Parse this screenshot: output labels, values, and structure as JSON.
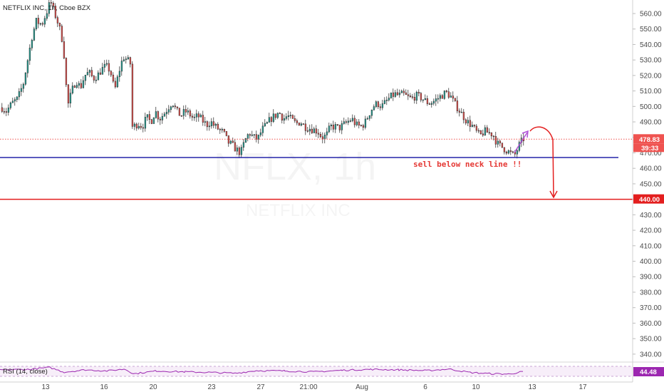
{
  "header": {
    "symbol_label": "NETFLIX INC, 1h, Cboe BZX"
  },
  "watermark": {
    "ticker": "NFLX, 1h",
    "company": "NETFLIX INC"
  },
  "annotation": {
    "text": "sell below neck line !!"
  },
  "price_labels": {
    "last": "478.83",
    "countdown": "39:33",
    "target": "440.00"
  },
  "rsi": {
    "label": "RSI (14, close)",
    "value": "44.48"
  },
  "colors": {
    "up": "#26a69a",
    "down": "#ef5350",
    "candle": "#3b3b3b",
    "neckline": "#2424a8",
    "target": "#e31e1e",
    "rsi": "#9c27b0",
    "arrow_purple": "#b052d6"
  },
  "chart_data": {
    "type": "candlestick",
    "title": "NETFLIX INC, 1h, Cboe BZX",
    "ylim": [
      335,
      572
    ],
    "y_ticks": [
      340,
      350,
      360,
      370,
      380,
      390,
      400,
      410,
      420,
      430,
      440,
      450,
      460,
      470,
      480,
      490,
      500,
      510,
      520,
      530,
      540,
      550,
      560
    ],
    "x_ticks": [
      "13",
      "16",
      "20",
      "23",
      "27",
      "21:00",
      "Aug",
      "6",
      "10",
      "13",
      "17"
    ],
    "neckline": 467,
    "target_level": 440,
    "last_price_line": 478.83,
    "price_path": [
      [
        0,
        500
      ],
      [
        8,
        497
      ],
      [
        16,
        502
      ],
      [
        24,
        505
      ],
      [
        32,
        515
      ],
      [
        38,
        530
      ],
      [
        44,
        545
      ],
      [
        50,
        555
      ],
      [
        58,
        553
      ],
      [
        64,
        560
      ],
      [
        70,
        568
      ],
      [
        76,
        560
      ],
      [
        82,
        552
      ],
      [
        88,
        540
      ],
      [
        94,
        500
      ],
      [
        100,
        510
      ],
      [
        106,
        517
      ],
      [
        112,
        512
      ],
      [
        118,
        520
      ],
      [
        124,
        522
      ],
      [
        130,
        518
      ],
      [
        136,
        520
      ],
      [
        142,
        524
      ],
      [
        148,
        526
      ],
      [
        154,
        523
      ],
      [
        160,
        510
      ],
      [
        166,
        522
      ],
      [
        172,
        532
      ],
      [
        178,
        530
      ],
      [
        183,
        527
      ],
      [
        187,
        487
      ],
      [
        193,
        489
      ],
      [
        199,
        487
      ],
      [
        205,
        493
      ],
      [
        211,
        490
      ],
      [
        217,
        497
      ],
      [
        223,
        492
      ],
      [
        229,
        495
      ],
      [
        235,
        499
      ],
      [
        241,
        503
      ],
      [
        247,
        497
      ],
      [
        253,
        494
      ],
      [
        259,
        497
      ],
      [
        265,
        495
      ],
      [
        271,
        492
      ],
      [
        277,
        494
      ],
      [
        283,
        491
      ],
      [
        289,
        488
      ],
      [
        295,
        490
      ],
      [
        301,
        487
      ],
      [
        307,
        485
      ],
      [
        313,
        483
      ],
      [
        319,
        477
      ],
      [
        325,
        475
      ],
      [
        331,
        472
      ],
      [
        337,
        470
      ],
      [
        343,
        478
      ],
      [
        349,
        483
      ],
      [
        355,
        480
      ],
      [
        361,
        479
      ],
      [
        367,
        485
      ],
      [
        373,
        488
      ],
      [
        379,
        492
      ],
      [
        385,
        494
      ],
      [
        391,
        496
      ],
      [
        397,
        492
      ],
      [
        403,
        494
      ],
      [
        409,
        491
      ],
      [
        415,
        489
      ],
      [
        421,
        490
      ],
      [
        427,
        487
      ],
      [
        433,
        486
      ],
      [
        439,
        485
      ],
      [
        445,
        484
      ],
      [
        451,
        480
      ],
      [
        457,
        481
      ],
      [
        463,
        487
      ],
      [
        469,
        487
      ],
      [
        475,
        486
      ],
      [
        481,
        488
      ],
      [
        487,
        490
      ],
      [
        493,
        492
      ],
      [
        499,
        488
      ],
      [
        505,
        487
      ],
      [
        511,
        489
      ],
      [
        517,
        495
      ],
      [
        523,
        500
      ],
      [
        529,
        502
      ],
      [
        535,
        500
      ],
      [
        541,
        503
      ],
      [
        547,
        506
      ],
      [
        553,
        508
      ],
      [
        559,
        507
      ],
      [
        565,
        508
      ],
      [
        571,
        506
      ],
      [
        577,
        505
      ],
      [
        583,
        507
      ],
      [
        589,
        506
      ],
      [
        595,
        504
      ],
      [
        601,
        502
      ],
      [
        607,
        503
      ],
      [
        613,
        505
      ],
      [
        619,
        507
      ],
      [
        625,
        509
      ],
      [
        631,
        507
      ],
      [
        637,
        502
      ],
      [
        643,
        498
      ],
      [
        649,
        494
      ],
      [
        655,
        490
      ],
      [
        661,
        488
      ],
      [
        667,
        484
      ],
      [
        673,
        481
      ],
      [
        679,
        484
      ],
      [
        685,
        483
      ],
      [
        691,
        482
      ],
      [
        697,
        476
      ],
      [
        703,
        474
      ],
      [
        709,
        472
      ],
      [
        715,
        470
      ],
      [
        721,
        468
      ],
      [
        725,
        472
      ],
      [
        729,
        476
      ],
      [
        734,
        479
      ]
    ],
    "rsi_series": [
      [
        0,
        55
      ],
      [
        40,
        58
      ],
      [
        70,
        70
      ],
      [
        90,
        40
      ],
      [
        120,
        55
      ],
      [
        150,
        48
      ],
      [
        175,
        60
      ],
      [
        188,
        30
      ],
      [
        220,
        48
      ],
      [
        260,
        42
      ],
      [
        300,
        38
      ],
      [
        330,
        33
      ],
      [
        360,
        50
      ],
      [
        400,
        48
      ],
      [
        440,
        42
      ],
      [
        480,
        52
      ],
      [
        520,
        58
      ],
      [
        560,
        55
      ],
      [
        600,
        50
      ],
      [
        630,
        60
      ],
      [
        660,
        38
      ],
      [
        690,
        30
      ],
      [
        715,
        28
      ],
      [
        734,
        44
      ]
    ],
    "rsi_value": 44.48
  }
}
